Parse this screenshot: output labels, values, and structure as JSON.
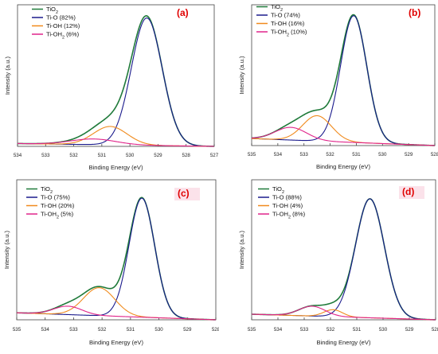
{
  "colors": {
    "tio2": "#1f7a3a",
    "ti_o": "#1a1a8c",
    "ti_oh": "#f08a1c",
    "ti_oh2": "#e0248a",
    "label_red": "#e00000",
    "label_bg": "#fbe2ea"
  },
  "chart_data": [
    {
      "type": "line",
      "panel_label": "(a)",
      "xlabel": "Binding Energy (eV)",
      "ylabel": "Intensity (a.u.)",
      "xlim": [
        534,
        527
      ],
      "x_reversed": true,
      "xticks": [
        "534",
        "533",
        "532",
        "531",
        "530",
        "529",
        "528",
        "527"
      ],
      "legend_position": "top-left",
      "series": [
        {
          "name": "TiO",
          "name_sub": "2",
          "name_rest": "",
          "color_key": "tio2",
          "kind": "envelope",
          "values": []
        },
        {
          "name": "Ti-O (82%)",
          "name_sub": "",
          "name_rest": "",
          "color_key": "ti_o",
          "kind": "peak",
          "center": 529.4,
          "height": 0.9,
          "width": 0.55
        },
        {
          "name": "Ti-OH (12%)",
          "name_sub": "",
          "name_rest": "",
          "color_key": "ti_oh",
          "kind": "peak",
          "center": 530.7,
          "height": 0.13,
          "width": 0.6
        },
        {
          "name": "Ti-OH",
          "name_sub": "2",
          "name_rest": " (6%)",
          "color_key": "ti_oh2",
          "kind": "peak",
          "center": 531.3,
          "height": 0.04,
          "width": 0.8
        }
      ],
      "baseline": {
        "start": 0.02,
        "end": 0.0
      }
    },
    {
      "type": "line",
      "panel_label": "(b)",
      "xlabel": "Binding Energy (eV)",
      "ylabel": "Intensity (a.u.)",
      "xlim": [
        535,
        528
      ],
      "x_reversed": true,
      "xticks": [
        "535",
        "534",
        "533",
        "532",
        "531",
        "530",
        "529",
        "528"
      ],
      "legend_position": "top-left",
      "series": [
        {
          "name": "TiO",
          "name_sub": "2",
          "name_rest": "",
          "color_key": "tio2",
          "kind": "envelope",
          "values": []
        },
        {
          "name": "Ti-O (74%)",
          "name_sub": "",
          "name_rest": "",
          "color_key": "ti_o",
          "kind": "peak",
          "center": 531.1,
          "height": 0.9,
          "width": 0.5
        },
        {
          "name": "Ti-OH (16%)",
          "name_sub": "",
          "name_rest": "",
          "color_key": "ti_oh",
          "kind": "peak",
          "center": 532.5,
          "height": 0.18,
          "width": 0.55
        },
        {
          "name": "Ti-OH",
          "name_sub": "2",
          "name_rest": " (10%)",
          "color_key": "ti_oh2",
          "kind": "peak",
          "center": 533.5,
          "height": 0.09,
          "width": 0.6
        }
      ],
      "baseline": {
        "start": 0.05,
        "end": 0.0
      }
    },
    {
      "type": "line",
      "panel_label": "(c)",
      "xlabel": "Binding Energy (eV)",
      "ylabel": "Intensity (a.u.)",
      "xlim": [
        535,
        528
      ],
      "x_reversed": true,
      "xticks": [
        "535",
        "534",
        "533",
        "532",
        "531",
        "530",
        "529",
        "528"
      ],
      "legend_position": "top-left",
      "series": [
        {
          "name": "TiO",
          "name_sub": "2",
          "name_rest": "",
          "color_key": "tio2",
          "kind": "envelope",
          "values": []
        },
        {
          "name": "Ti-O (75%)",
          "name_sub": "",
          "name_rest": "",
          "color_key": "ti_o",
          "kind": "peak",
          "center": 530.6,
          "height": 0.85,
          "width": 0.45
        },
        {
          "name": "Ti-OH (20%)",
          "name_sub": "",
          "name_rest": "",
          "color_key": "ti_oh",
          "kind": "peak",
          "center": 532.1,
          "height": 0.2,
          "width": 0.55
        },
        {
          "name": "Ti-OH",
          "name_sub": "2",
          "name_rest": " (5%)",
          "color_key": "ti_oh2",
          "kind": "peak",
          "center": 533.2,
          "height": 0.06,
          "width": 0.5
        }
      ],
      "baseline": {
        "start": 0.05,
        "end": 0.0
      }
    },
    {
      "type": "line",
      "panel_label": "(d)",
      "xlabel": "Binding Energy (eV)",
      "ylabel": "Intensity (a.u.)",
      "xlim": [
        535,
        528
      ],
      "x_reversed": true,
      "xticks": [
        "535",
        "534",
        "533",
        "532",
        "531",
        "530",
        "529",
        "528"
      ],
      "legend_position": "top-left",
      "series": [
        {
          "name": "TiO",
          "name_sub": "2",
          "name_rest": "",
          "color_key": "tio2",
          "kind": "envelope",
          "values": []
        },
        {
          "name": "Ti-O (88%)",
          "name_sub": "",
          "name_rest": "",
          "color_key": "ti_o",
          "kind": "peak",
          "center": 530.5,
          "height": 0.85,
          "width": 0.55
        },
        {
          "name": "Ti-OH (4%)",
          "name_sub": "",
          "name_rest": "",
          "color_key": "ti_oh",
          "kind": "peak",
          "center": 531.9,
          "height": 0.05,
          "width": 0.35
        },
        {
          "name": "Ti-OH",
          "name_sub": "2",
          "name_rest": " (8%)",
          "color_key": "ti_oh2",
          "kind": "peak",
          "center": 532.7,
          "height": 0.07,
          "width": 0.5
        }
      ],
      "baseline": {
        "start": 0.04,
        "end": 0.0
      }
    }
  ]
}
